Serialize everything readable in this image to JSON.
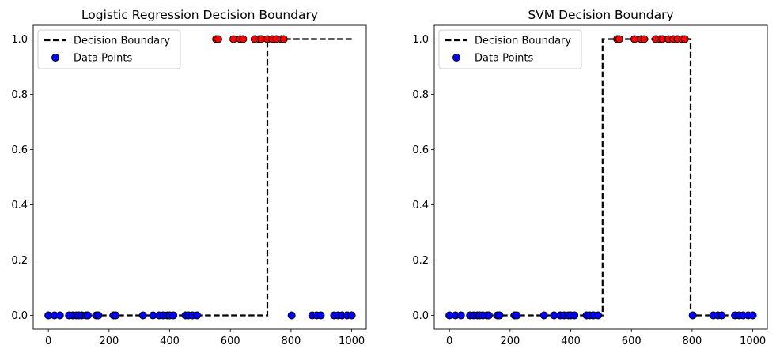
{
  "chart_data": [
    {
      "type": "scatter",
      "title": "Logistic Regression Decision Boundary",
      "xlabel": "",
      "ylabel": "",
      "xlim": [
        -50,
        1048
      ],
      "ylim": [
        -0.05,
        1.05
      ],
      "xticks": [
        "0",
        "200",
        "400",
        "600",
        "800",
        "1000"
      ],
      "yticks": [
        "0.0",
        "0.2",
        "0.4",
        "0.6",
        "0.8",
        "1.0"
      ],
      "grid": false,
      "legend_position": "top-left",
      "legend": [
        {
          "label": "Decision Boundary",
          "style": "dashed-line"
        },
        {
          "label": "Data Points",
          "style": "marker"
        }
      ],
      "boundary": {
        "x": [
          0,
          722,
          722,
          1000
        ],
        "y": [
          0,
          0,
          1,
          1
        ],
        "color": "#000000"
      },
      "points": {
        "x": [
          0,
          20,
          38,
          68,
          80,
          92,
          100,
          110,
          124,
          130,
          158,
          165,
          215,
          222,
          312,
          345,
          365,
          378,
          392,
          400,
          412,
          452,
          462,
          475,
          490,
          553,
          560,
          610,
          632,
          642,
          680,
          695,
          702,
          722,
          738,
          752,
          768,
          776,
          802,
          870,
          885,
          898,
          942,
          955,
          968,
          985,
          1000
        ],
        "y": [
          0,
          0,
          0,
          0,
          0,
          0,
          0,
          0,
          0,
          0,
          0,
          0,
          0,
          0,
          0,
          0,
          0,
          0,
          0,
          0,
          0,
          0,
          0,
          0,
          0,
          1,
          1,
          1,
          1,
          1,
          1,
          1,
          1,
          1,
          1,
          1,
          1,
          1,
          0,
          0,
          0,
          0,
          0,
          0,
          0,
          0,
          0
        ],
        "colors": {
          "0": "#0000ff",
          "1": "#ff0000"
        },
        "edge_color": "#000000"
      }
    },
    {
      "type": "scatter",
      "title": "SVM Decision Boundary",
      "xlabel": "",
      "ylabel": "",
      "xlim": [
        -50,
        1048
      ],
      "ylim": [
        -0.05,
        1.05
      ],
      "xticks": [
        "0",
        "200",
        "400",
        "600",
        "800",
        "1000"
      ],
      "yticks": [
        "0.0",
        "0.2",
        "0.4",
        "0.6",
        "0.8",
        "1.0"
      ],
      "grid": false,
      "legend_position": "top-left",
      "legend": [
        {
          "label": "Decision Boundary",
          "style": "dashed-line"
        },
        {
          "label": "Data Points",
          "style": "marker"
        }
      ],
      "boundary": {
        "x": [
          0,
          505,
          505,
          795,
          795,
          1000
        ],
        "y": [
          0,
          0,
          1,
          1,
          0,
          0
        ],
        "color": "#000000"
      },
      "points": {
        "x": [
          0,
          20,
          38,
          68,
          80,
          92,
          100,
          110,
          124,
          130,
          158,
          165,
          215,
          222,
          312,
          345,
          365,
          378,
          392,
          400,
          412,
          452,
          462,
          475,
          490,
          553,
          560,
          610,
          632,
          642,
          680,
          695,
          702,
          722,
          738,
          752,
          768,
          776,
          802,
          870,
          885,
          898,
          942,
          955,
          968,
          985,
          1000
        ],
        "y": [
          0,
          0,
          0,
          0,
          0,
          0,
          0,
          0,
          0,
          0,
          0,
          0,
          0,
          0,
          0,
          0,
          0,
          0,
          0,
          0,
          0,
          0,
          0,
          0,
          0,
          1,
          1,
          1,
          1,
          1,
          1,
          1,
          1,
          1,
          1,
          1,
          1,
          1,
          0,
          0,
          0,
          0,
          0,
          0,
          0,
          0,
          0
        ],
        "colors": {
          "0": "#0000ff",
          "1": "#ff0000"
        },
        "edge_color": "#000000"
      }
    }
  ]
}
